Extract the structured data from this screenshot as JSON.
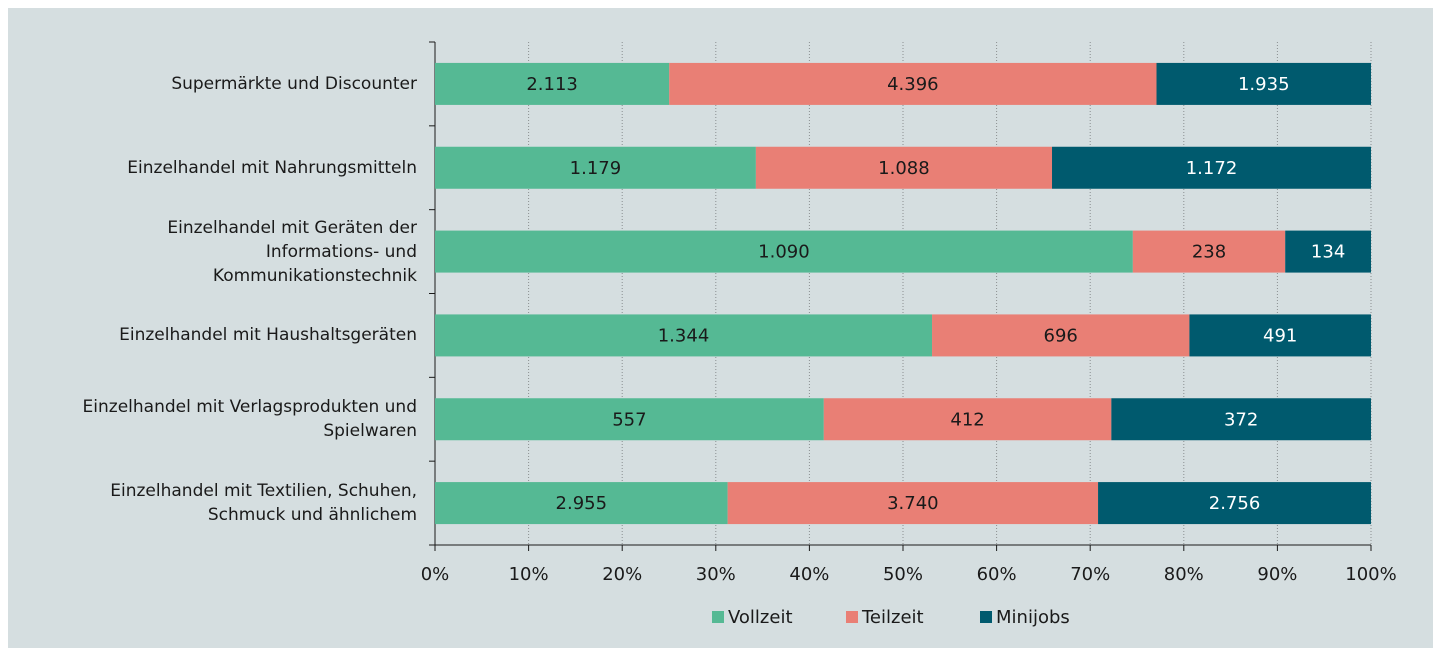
{
  "chart_data": {
    "type": "bar",
    "orientation": "horizontal",
    "stacking": "percent",
    "categories": [
      "Supermärkte und Discounter",
      "Einzelhandel mit Nahrungsmitteln",
      "Einzelhandel mit Geräten der\nInformations- und\nKommunikationstechnik",
      "Einzelhandel mit Haushaltsgeräten",
      "Einzelhandel mit Verlagsprodukten und\nSpielwaren",
      "Einzelhandel mit Textilien, Schuhen,\nSchmuck und ähnlichem"
    ],
    "series": [
      {
        "name": "Vollzeit",
        "color": "#55b994",
        "label_color": "#1a1a1a",
        "values": [
          2113,
          1179,
          1090,
          1344,
          557,
          2955
        ],
        "value_labels": [
          "2.113",
          "1.179",
          "1.090",
          "1.344",
          "557",
          "2.955"
        ]
      },
      {
        "name": "Teilzeit",
        "color": "#e97f75",
        "label_color": "#1a1a1a",
        "values": [
          4396,
          1088,
          238,
          696,
          412,
          3740
        ],
        "value_labels": [
          "4.396",
          "1.088",
          "238",
          "696",
          "412",
          "3.740"
        ]
      },
      {
        "name": "Minijobs",
        "color": "#005a6e",
        "label_color": "#ffffff",
        "values": [
          1935,
          1172,
          134,
          491,
          372,
          2756
        ],
        "value_labels": [
          "1.935",
          "1.172",
          "134",
          "491",
          "372",
          "2.756"
        ]
      }
    ],
    "xlim": [
      0,
      100
    ],
    "xticks": [
      {
        "value": 0,
        "label": "0%"
      },
      {
        "value": 10,
        "label": "10%"
      },
      {
        "value": 20,
        "label": "20%"
      },
      {
        "value": 30,
        "label": "30%"
      },
      {
        "value": 40,
        "label": "40%"
      },
      {
        "value": 50,
        "label": "50%"
      },
      {
        "value": 60,
        "label": "60%"
      },
      {
        "value": 70,
        "label": "70%"
      },
      {
        "value": 80,
        "label": "80%"
      },
      {
        "value": 90,
        "label": "90%"
      },
      {
        "value": 100,
        "label": "100%"
      }
    ],
    "grid": true,
    "legend": "bottom"
  }
}
